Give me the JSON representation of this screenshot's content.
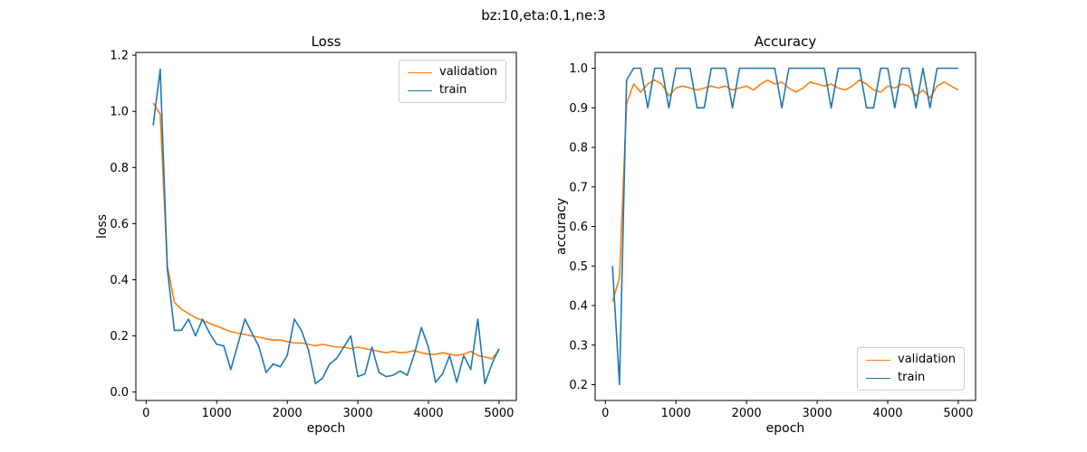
{
  "figure": {
    "suptitle": "bz:10,eta:0.1,ne:3",
    "background": "#ffffff"
  },
  "colors": {
    "validation": "#ff7f0e",
    "train": "#1f77b4",
    "axis": "#000000",
    "legend_border": "#cccccc"
  },
  "chart_data": [
    {
      "type": "line",
      "title": "Loss",
      "xlabel": "epoch",
      "ylabel": "loss",
      "legend_position": "top-right",
      "grid": false,
      "xlim": [
        -145,
        5245
      ],
      "ylim": [
        -0.03,
        1.21
      ],
      "xticks": [
        0,
        1000,
        2000,
        3000,
        4000,
        5000
      ],
      "yticks": [
        0.0,
        0.2,
        0.4,
        0.6,
        0.8,
        1.0,
        1.2
      ],
      "x": [
        100,
        200,
        300,
        400,
        500,
        600,
        700,
        800,
        900,
        1000,
        1100,
        1200,
        1300,
        1400,
        1500,
        1600,
        1700,
        1800,
        1900,
        2000,
        2100,
        2200,
        2300,
        2400,
        2500,
        2600,
        2700,
        2800,
        2900,
        3000,
        3100,
        3200,
        3300,
        3400,
        3500,
        3600,
        3700,
        3800,
        3900,
        4000,
        4100,
        4200,
        4300,
        4400,
        4500,
        4600,
        4700,
        4800,
        4900,
        5000
      ],
      "series": [
        {
          "name": "validation",
          "color": "#ff7f0e",
          "values": [
            1.03,
            0.99,
            0.45,
            0.32,
            0.295,
            0.28,
            0.265,
            0.255,
            0.245,
            0.235,
            0.225,
            0.215,
            0.21,
            0.205,
            0.2,
            0.195,
            0.19,
            0.185,
            0.185,
            0.18,
            0.175,
            0.175,
            0.17,
            0.165,
            0.17,
            0.165,
            0.16,
            0.16,
            0.155,
            0.16,
            0.155,
            0.15,
            0.145,
            0.14,
            0.145,
            0.14,
            0.142,
            0.148,
            0.14,
            0.135,
            0.135,
            0.14,
            0.135,
            0.13,
            0.135,
            0.145,
            0.13,
            0.125,
            0.118,
            0.15
          ]
        },
        {
          "name": "train",
          "color": "#1f77b4",
          "values": [
            0.95,
            1.15,
            0.44,
            0.22,
            0.22,
            0.26,
            0.2,
            0.26,
            0.21,
            0.17,
            0.165,
            0.08,
            0.17,
            0.26,
            0.21,
            0.16,
            0.07,
            0.1,
            0.09,
            0.13,
            0.26,
            0.22,
            0.15,
            0.03,
            0.05,
            0.1,
            0.12,
            0.16,
            0.2,
            0.055,
            0.065,
            0.16,
            0.07,
            0.055,
            0.06,
            0.075,
            0.06,
            0.135,
            0.23,
            0.16,
            0.035,
            0.065,
            0.13,
            0.035,
            0.13,
            0.08,
            0.26,
            0.03,
            0.1,
            0.155
          ]
        }
      ]
    },
    {
      "type": "line",
      "title": "Accuracy",
      "xlabel": "epoch",
      "ylabel": "accuracy",
      "legend_position": "bottom-right",
      "grid": false,
      "xlim": [
        -145,
        5245
      ],
      "ylim": [
        0.16,
        1.04
      ],
      "xticks": [
        0,
        1000,
        2000,
        3000,
        4000,
        5000
      ],
      "yticks": [
        0.2,
        0.3,
        0.4,
        0.5,
        0.6,
        0.7,
        0.8,
        0.9,
        1.0
      ],
      "x": [
        100,
        200,
        300,
        400,
        500,
        600,
        700,
        800,
        900,
        1000,
        1100,
        1200,
        1300,
        1400,
        1500,
        1600,
        1700,
        1800,
        1900,
        2000,
        2100,
        2200,
        2300,
        2400,
        2500,
        2600,
        2700,
        2800,
        2900,
        3000,
        3100,
        3200,
        3300,
        3400,
        3500,
        3600,
        3700,
        3800,
        3900,
        4000,
        4100,
        4200,
        4300,
        4400,
        4500,
        4600,
        4700,
        4800,
        4900,
        5000
      ],
      "series": [
        {
          "name": "validation",
          "color": "#ff7f0e",
          "values": [
            0.41,
            0.47,
            0.91,
            0.96,
            0.94,
            0.96,
            0.97,
            0.96,
            0.93,
            0.95,
            0.955,
            0.95,
            0.945,
            0.95,
            0.955,
            0.95,
            0.955,
            0.945,
            0.95,
            0.955,
            0.945,
            0.96,
            0.97,
            0.96,
            0.965,
            0.95,
            0.94,
            0.95,
            0.965,
            0.96,
            0.955,
            0.96,
            0.95,
            0.945,
            0.955,
            0.97,
            0.96,
            0.945,
            0.94,
            0.955,
            0.95,
            0.96,
            0.955,
            0.93,
            0.945,
            0.925,
            0.955,
            0.965,
            0.955,
            0.945
          ]
        },
        {
          "name": "train",
          "color": "#1f77b4",
          "values": [
            0.5,
            0.2,
            0.97,
            1.0,
            1.0,
            0.9,
            1.0,
            1.0,
            0.9,
            1.0,
            1.0,
            1.0,
            0.9,
            0.9,
            1.0,
            1.0,
            1.0,
            0.9,
            1.0,
            1.0,
            1.0,
            1.0,
            1.0,
            1.0,
            0.9,
            1.0,
            1.0,
            1.0,
            1.0,
            1.0,
            1.0,
            0.9,
            1.0,
            1.0,
            1.0,
            1.0,
            0.9,
            0.9,
            1.0,
            1.0,
            0.9,
            1.0,
            1.0,
            0.9,
            1.0,
            0.9,
            1.0,
            1.0,
            1.0,
            1.0
          ]
        }
      ]
    }
  ]
}
